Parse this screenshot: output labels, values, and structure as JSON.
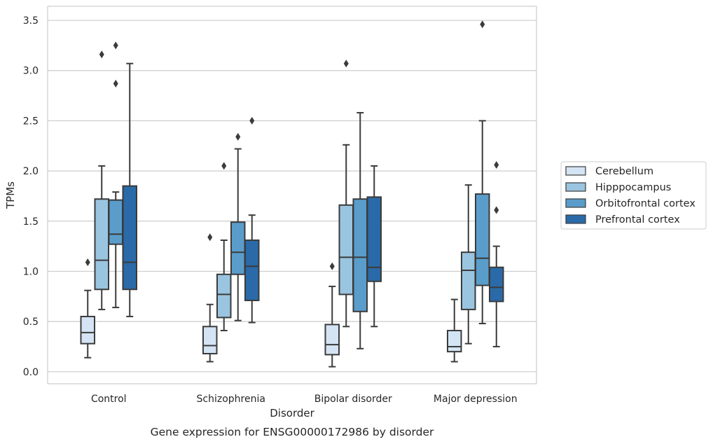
{
  "chart_data": {
    "type": "box",
    "caption": "Gene expression for ENSG00000172986 by disorder",
    "xlabel": "Disorder",
    "ylabel": "TPMs",
    "ylim": [
      -0.12,
      3.64
    ],
    "yticks": [
      0.0,
      0.5,
      1.0,
      1.5,
      2.0,
      2.5,
      3.0,
      3.5
    ],
    "ytick_labels": [
      "0.0",
      "0.5",
      "1.0",
      "1.5",
      "2.0",
      "2.5",
      "3.0",
      "3.5"
    ],
    "grid": "horizontal",
    "legend_position": "right",
    "categories": [
      "Control",
      "Schizophrenia",
      "Bipolar disorder",
      "Major depression"
    ],
    "series": [
      {
        "name": "Cerebellum",
        "color": "#d4e4f4",
        "boxes": [
          {
            "whislo": 0.14,
            "q1": 0.28,
            "med": 0.39,
            "q3": 0.55,
            "whishi": 0.81,
            "fliers": [
              1.09
            ]
          },
          {
            "whislo": 0.1,
            "q1": 0.18,
            "med": 0.26,
            "q3": 0.45,
            "whishi": 0.67,
            "fliers": [
              1.34
            ]
          },
          {
            "whislo": 0.05,
            "q1": 0.17,
            "med": 0.27,
            "q3": 0.47,
            "whishi": 0.85,
            "fliers": [
              1.05
            ]
          },
          {
            "whislo": 0.1,
            "q1": 0.2,
            "med": 0.25,
            "q3": 0.41,
            "whishi": 0.72,
            "fliers": []
          }
        ]
      },
      {
        "name": "Hipppocampus",
        "color": "#9ac5e0",
        "boxes": [
          {
            "whislo": 0.62,
            "q1": 0.82,
            "med": 1.11,
            "q3": 1.72,
            "whishi": 2.05,
            "fliers": [
              3.16
            ]
          },
          {
            "whislo": 0.41,
            "q1": 0.54,
            "med": 0.77,
            "q3": 0.97,
            "whishi": 1.31,
            "fliers": [
              2.05
            ]
          },
          {
            "whislo": 0.45,
            "q1": 0.77,
            "med": 1.14,
            "q3": 1.66,
            "whishi": 2.26,
            "fliers": [
              3.07
            ]
          },
          {
            "whislo": 0.28,
            "q1": 0.62,
            "med": 1.01,
            "q3": 1.19,
            "whishi": 1.86,
            "fliers": []
          }
        ]
      },
      {
        "name": "Orbitofrontal cortex",
        "color": "#5a9dcb",
        "boxes": [
          {
            "whislo": 0.64,
            "q1": 1.27,
            "med": 1.37,
            "q3": 1.71,
            "whishi": 1.79,
            "fliers": [
              2.87,
              3.25
            ]
          },
          {
            "whislo": 0.51,
            "q1": 0.97,
            "med": 1.19,
            "q3": 1.49,
            "whishi": 2.22,
            "fliers": [
              2.34
            ]
          },
          {
            "whislo": 0.23,
            "q1": 0.6,
            "med": 1.14,
            "q3": 1.72,
            "whishi": 2.58,
            "fliers": []
          },
          {
            "whislo": 0.48,
            "q1": 0.86,
            "med": 1.13,
            "q3": 1.77,
            "whishi": 2.5,
            "fliers": [
              3.46
            ]
          }
        ]
      },
      {
        "name": "Prefrontal cortex",
        "color": "#2a6aa8",
        "boxes": [
          {
            "whislo": 0.55,
            "q1": 0.82,
            "med": 1.09,
            "q3": 1.85,
            "whishi": 3.07,
            "fliers": []
          },
          {
            "whislo": 0.49,
            "q1": 0.71,
            "med": 1.05,
            "q3": 1.31,
            "whishi": 1.56,
            "fliers": [
              2.5
            ]
          },
          {
            "whislo": 0.45,
            "q1": 0.9,
            "med": 1.04,
            "q3": 1.74,
            "whishi": 2.05,
            "fliers": []
          },
          {
            "whislo": 0.25,
            "q1": 0.7,
            "med": 0.84,
            "q3": 1.04,
            "whishi": 1.25,
            "fliers": [
              1.61,
              2.06
            ]
          }
        ]
      }
    ]
  }
}
